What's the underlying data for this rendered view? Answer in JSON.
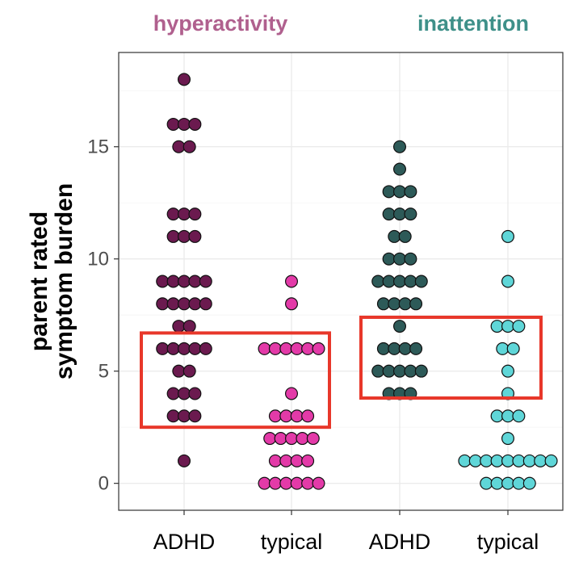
{
  "chart_data": {
    "type": "scatter",
    "subtype": "dotplot",
    "ylabel_lines": [
      "parent rated",
      "symptom burden"
    ],
    "ylim": [
      -1.2,
      19.2
    ],
    "y_ticks": [
      0,
      5,
      10,
      15
    ],
    "grid": true,
    "categories": [
      "ADHD",
      "typical",
      "ADHD",
      "typical"
    ],
    "facets": [
      {
        "name": "hyperactivity",
        "color": "#b0608e",
        "highlight_box": {
          "y_min": 2.5,
          "y_max": 6.7
        },
        "series": [
          {
            "category": "ADHD",
            "fill": "#6b1a4f",
            "counts": {
              "1": 1,
              "3": 3,
              "4": 3,
              "5": 2,
              "6": 5,
              "7": 2,
              "8": 5,
              "9": 5,
              "11": 3,
              "12": 3,
              "15": 2,
              "16": 3,
              "18": 1
            }
          },
          {
            "category": "typical",
            "fill": "#e33aa8",
            "counts": {
              "0": 6,
              "1": 4,
              "2": 5,
              "3": 4,
              "4": 1,
              "6": 6,
              "8": 1,
              "9": 1
            }
          }
        ]
      },
      {
        "name": "inattention",
        "color": "#3e9089",
        "highlight_box": {
          "y_min": 3.8,
          "y_max": 7.4
        },
        "series": [
          {
            "category": "ADHD",
            "fill": "#2d5a58",
            "counts": {
              "4": 3,
              "5": 5,
              "6": 4,
              "7": 1,
              "8": 4,
              "9": 5,
              "10": 3,
              "11": 2,
              "12": 3,
              "13": 3,
              "14": 1,
              "15": 1
            }
          },
          {
            "category": "typical",
            "fill": "#5fd6d8",
            "counts": {
              "0": 5,
              "1": 9,
              "2": 1,
              "3": 3,
              "4": 1,
              "5": 1,
              "6": 2,
              "7": 3,
              "9": 1,
              "11": 1
            }
          }
        ]
      }
    ]
  }
}
